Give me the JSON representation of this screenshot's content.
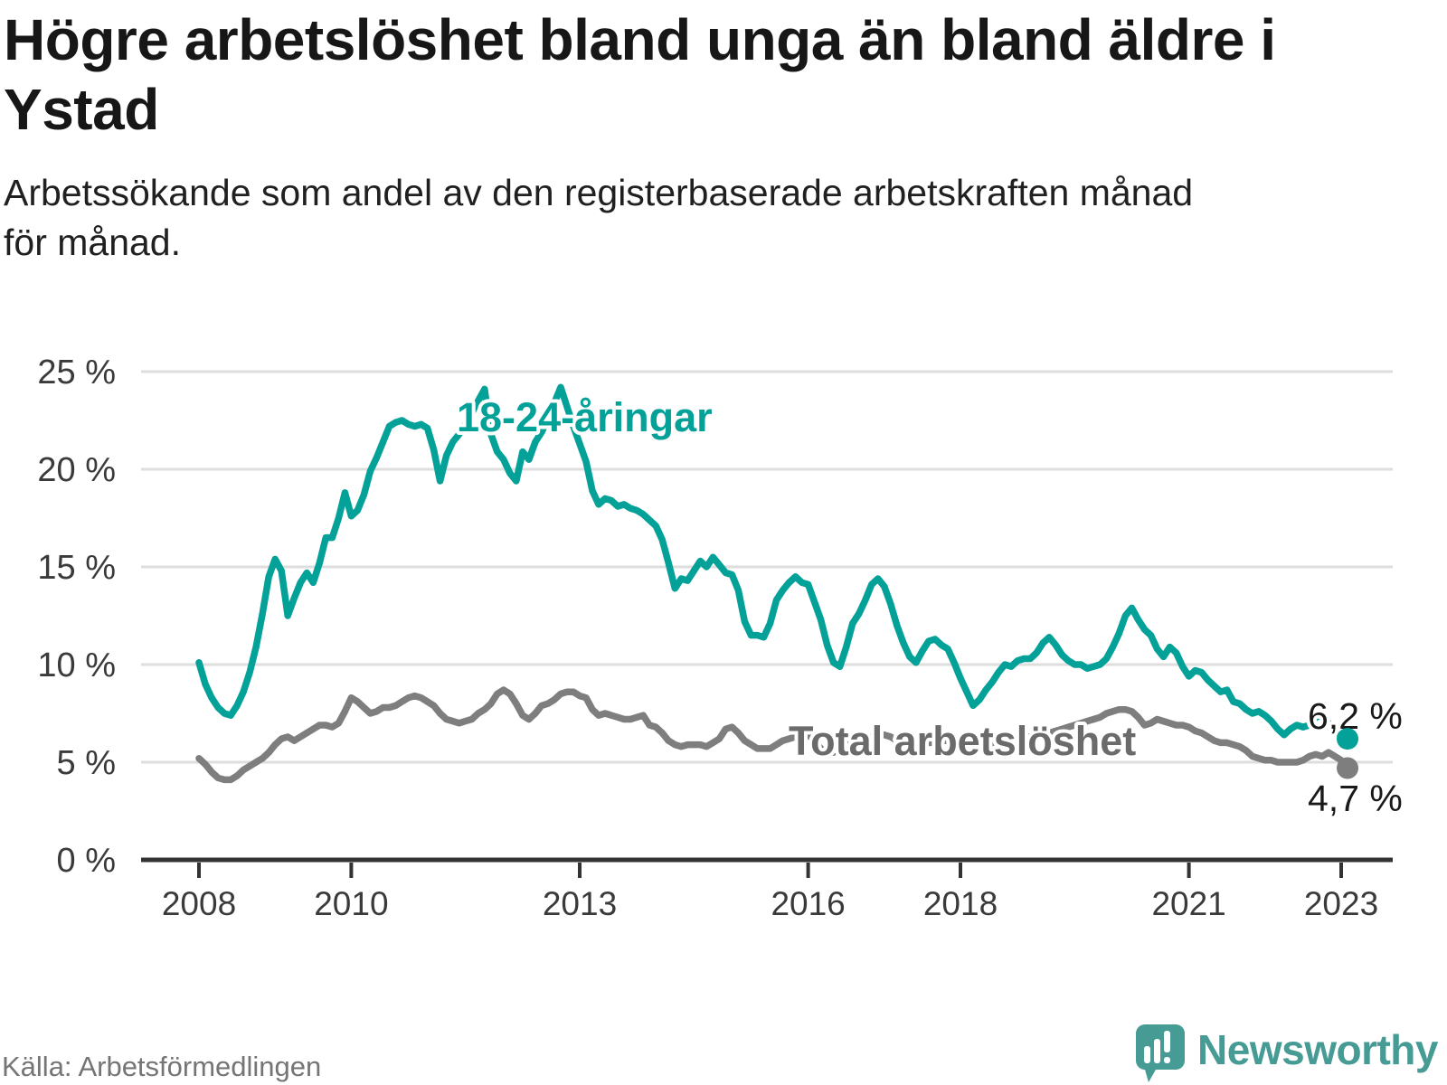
{
  "title": "Högre arbetslöshet bland unga än bland äldre i\nYstad",
  "subtitle": "Arbetssökande som andel av den registerbaserade arbetskraften månad\nför månad.",
  "source": "Källa: Arbetsförmedlingen",
  "branding": {
    "name": "Newsworthy",
    "color": "#469b94",
    "icon": "newsworthy-speech-bubble-bar-chart-icon"
  },
  "chart_data": {
    "type": "line",
    "title": "Högre arbetslöshet bland unga än bland äldre i Ystad",
    "x_unit": "month",
    "x_start": "2008-01",
    "x_end": "2023-02",
    "grid": true,
    "legend_position": "inline-labels",
    "y_axis": {
      "unit": "%",
      "min": 0,
      "max": 25,
      "ticks": [
        {
          "value": 0,
          "label": "0 %"
        },
        {
          "value": 5,
          "label": "5 %"
        },
        {
          "value": 10,
          "label": "10 %"
        },
        {
          "value": 15,
          "label": "15 %"
        },
        {
          "value": 20,
          "label": "20 %"
        },
        {
          "value": 25,
          "label": "25 %"
        }
      ]
    },
    "x_axis": {
      "start_year": 2008,
      "tick_years": [
        2008,
        2010,
        2013,
        2016,
        2018,
        2021,
        2023
      ]
    },
    "series": [
      {
        "id": "18-24-aringar",
        "name": "18-24-åringar",
        "color": "#04a199",
        "label_color": "#04a199",
        "end_label": "6,2 %",
        "end_value": 6.2,
        "values": [
          10.1,
          9.0,
          8.3,
          7.8,
          7.5,
          7.4,
          7.9,
          8.6,
          9.6,
          10.9,
          12.6,
          14.5,
          15.4,
          14.8,
          12.5,
          13.4,
          14.2,
          14.7,
          14.2,
          15.2,
          16.5,
          16.5,
          17.5,
          18.8,
          17.6,
          17.9,
          18.7,
          19.9,
          20.6,
          21.4,
          22.2,
          22.4,
          22.5,
          22.3,
          22.2,
          22.3,
          22.1,
          21.0,
          19.4,
          20.7,
          21.4,
          21.8,
          22.3,
          22.9,
          23.5,
          24.1,
          21.8,
          20.9,
          20.5,
          19.8,
          19.4,
          20.9,
          20.5,
          21.4,
          21.9,
          22.6,
          23.4,
          24.2,
          23.2,
          22.2,
          21.3,
          20.4,
          18.9,
          18.2,
          18.5,
          18.4,
          18.1,
          18.2,
          18.0,
          17.9,
          17.7,
          17.4,
          17.1,
          16.4,
          15.2,
          13.9,
          14.4,
          14.3,
          14.8,
          15.3,
          15.0,
          15.5,
          15.1,
          14.7,
          14.6,
          13.8,
          12.2,
          11.5,
          11.5,
          11.4,
          12.1,
          13.3,
          13.8,
          14.2,
          14.5,
          14.2,
          14.1,
          13.2,
          12.3,
          11.0,
          10.1,
          9.9,
          10.9,
          12.1,
          12.6,
          13.3,
          14.1,
          14.4,
          14.0,
          13.1,
          12.0,
          11.1,
          10.4,
          10.1,
          10.7,
          11.2,
          11.3,
          11.0,
          10.8,
          10.1,
          9.3,
          8.6,
          7.9,
          8.2,
          8.7,
          9.1,
          9.6,
          10.0,
          9.9,
          10.2,
          10.3,
          10.3,
          10.6,
          11.1,
          11.4,
          11.0,
          10.5,
          10.2,
          10.0,
          10.0,
          9.8,
          9.9,
          10.0,
          10.3,
          10.9,
          11.6,
          12.5,
          12.9,
          12.3,
          11.8,
          11.5,
          10.8,
          10.4,
          10.9,
          10.6,
          9.9,
          9.4,
          9.7,
          9.6,
          9.2,
          8.9,
          8.6,
          8.7,
          8.1,
          8.0,
          7.7,
          7.5,
          7.6,
          7.4,
          7.1,
          6.7,
          6.4,
          6.7,
          6.9,
          6.8,
          6.9,
          7.3,
          7.4,
          7.0,
          6.6,
          6.4,
          6.2
        ]
      },
      {
        "id": "total-arbetsloshet",
        "name": "Total arbetslöshet",
        "color": "#7e7e7e",
        "label_color": "#6b6b6b",
        "end_label": "4,7 %",
        "end_value": 4.7,
        "values": [
          5.2,
          4.9,
          4.5,
          4.2,
          4.1,
          4.1,
          4.3,
          4.6,
          4.8,
          5.0,
          5.2,
          5.5,
          5.9,
          6.2,
          6.3,
          6.1,
          6.3,
          6.5,
          6.7,
          6.9,
          6.9,
          6.8,
          7.0,
          7.6,
          8.3,
          8.1,
          7.8,
          7.5,
          7.6,
          7.8,
          7.8,
          7.9,
          8.1,
          8.3,
          8.4,
          8.3,
          8.1,
          7.9,
          7.5,
          7.2,
          7.1,
          7.0,
          7.1,
          7.2,
          7.5,
          7.7,
          8.0,
          8.5,
          8.7,
          8.5,
          8.0,
          7.4,
          7.2,
          7.5,
          7.9,
          8.0,
          8.2,
          8.5,
          8.6,
          8.6,
          8.4,
          8.3,
          7.7,
          7.4,
          7.5,
          7.4,
          7.3,
          7.2,
          7.2,
          7.3,
          7.4,
          6.9,
          6.8,
          6.5,
          6.1,
          5.9,
          5.8,
          5.9,
          5.9,
          5.9,
          5.8,
          6.0,
          6.2,
          6.7,
          6.8,
          6.5,
          6.1,
          5.9,
          5.7,
          5.7,
          5.7,
          5.9,
          6.1,
          6.2,
          6.3,
          6.4,
          6.4,
          6.1,
          5.7,
          5.5,
          5.5,
          5.7,
          5.9,
          6.0,
          6.1,
          6.2,
          6.3,
          6.4,
          6.4,
          6.3,
          6.1,
          6.0,
          5.9,
          5.8,
          5.9,
          6.0,
          6.0,
          6.1,
          6.1,
          6.2,
          6.2,
          6.1,
          6.0,
          5.9,
          5.9,
          6.0,
          6.1,
          6.1,
          6.2,
          6.2,
          6.3,
          6.3,
          6.4,
          6.5,
          6.5,
          6.6,
          6.7,
          6.8,
          6.9,
          7.0,
          7.1,
          7.2,
          7.3,
          7.5,
          7.6,
          7.7,
          7.7,
          7.6,
          7.3,
          6.9,
          7.0,
          7.2,
          7.1,
          7.0,
          6.9,
          6.9,
          6.8,
          6.6,
          6.5,
          6.3,
          6.1,
          6.0,
          6.0,
          5.9,
          5.8,
          5.6,
          5.3,
          5.2,
          5.1,
          5.1,
          5.0,
          5.0,
          5.0,
          5.0,
          5.1,
          5.3,
          5.4,
          5.3,
          5.5,
          5.3,
          5.1,
          4.7
        ]
      }
    ]
  }
}
